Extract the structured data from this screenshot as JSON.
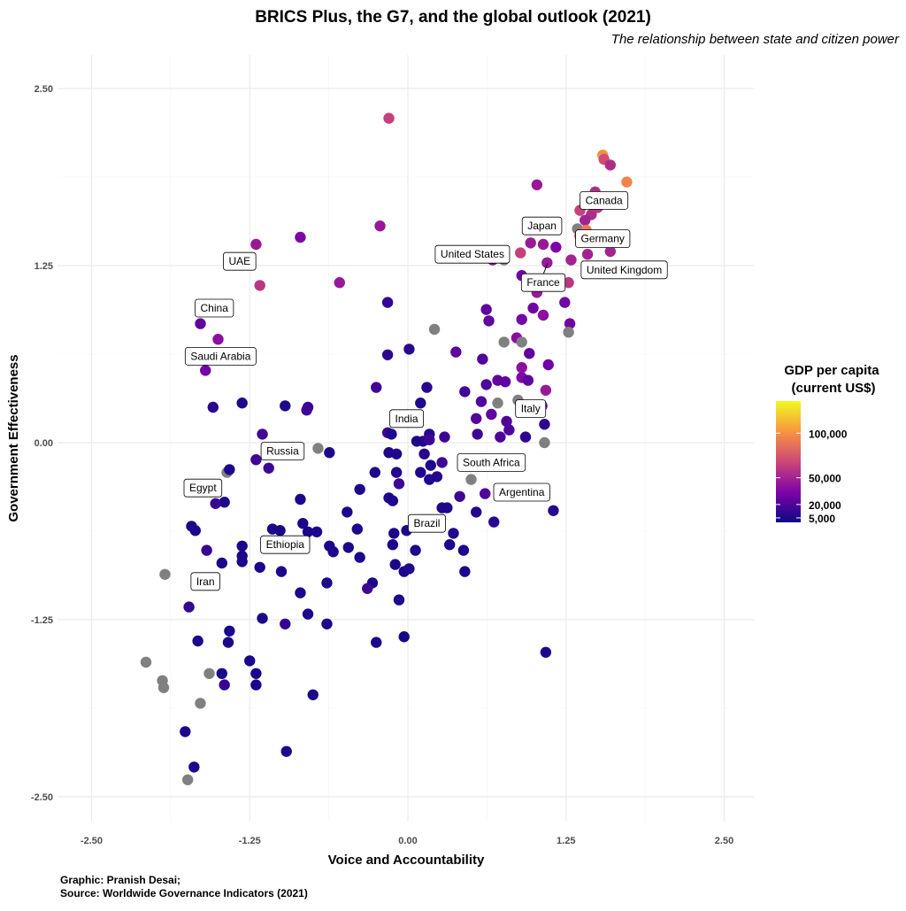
{
  "chart_data": {
    "type": "scatter",
    "title": "BRICS Plus, the G7, and the global outlook (2021)",
    "subtitle": "The relationship between state and citizen power",
    "xlabel": "Voice and Accountability",
    "ylabel": "Government Effectiveness",
    "xlim": [
      -2.75,
      2.75
    ],
    "ylim": [
      -2.65,
      2.75
    ],
    "xticks": [
      -2.5,
      -1.25,
      0,
      1.25,
      2.5
    ],
    "xtick_labels": [
      "-2.50",
      "-1.25",
      "0.00",
      "1.25",
      "2.50"
    ],
    "yticks": [
      -2.5,
      -1.25,
      0,
      1.25,
      2.5
    ],
    "ytick_labels": [
      "-2.50",
      "-1.25",
      "0.00",
      "1.25",
      "2.50"
    ],
    "grid": true,
    "legend": {
      "title_line1": "GDP per capita",
      "title_line2": "(current US$)",
      "placement": "right",
      "range": [
        0,
        136000
      ],
      "ticks": [
        100000,
        50000,
        20000,
        5000
      ],
      "tick_labels": [
        "100,000",
        "50,000",
        "20,000",
        "5,000"
      ],
      "missing_color": "#808080",
      "palette": [
        "#0d0887",
        "#7e03a8",
        "#cc4778",
        "#f89540",
        "#f0f921"
      ]
    },
    "points_columns": [
      "voice_accountability",
      "government_effectiveness",
      "gdp_per_capita"
    ],
    "points": [
      [
        -0.15,
        2.29,
        65000
      ],
      [
        1.54,
        2.03,
        100000
      ],
      [
        1.55,
        2.0,
        70000
      ],
      [
        1.6,
        1.96,
        55000
      ],
      [
        1.73,
        1.84,
        95000
      ],
      [
        1.02,
        1.82,
        45000
      ],
      [
        1.48,
        1.77,
        55000
      ],
      [
        1.36,
        1.64,
        65000
      ],
      [
        1.45,
        1.61,
        55000
      ],
      [
        1.4,
        1.57,
        50000
      ],
      [
        1.5,
        1.66,
        60000
      ],
      [
        1.34,
        1.51,
        null
      ],
      [
        1.41,
        1.5,
        90000
      ],
      [
        1.36,
        1.46,
        52000
      ],
      [
        0.97,
        1.41,
        45000
      ],
      [
        1.07,
        1.4,
        45000
      ],
      [
        1.17,
        1.38,
        35000
      ],
      [
        0.89,
        1.34,
        65000
      ],
      [
        1.42,
        1.33,
        50000
      ],
      [
        1.6,
        1.35,
        50000
      ],
      [
        1.1,
        1.27,
        45000
      ],
      [
        1.29,
        1.29,
        50000
      ],
      [
        0.67,
        1.29,
        40000
      ],
      [
        0.76,
        1.29,
        null
      ],
      [
        0.9,
        1.18,
        30000
      ],
      [
        1.27,
        1.13,
        60000
      ],
      [
        1.02,
        1.06,
        45000
      ],
      [
        1.24,
        0.99,
        30000
      ],
      [
        0.62,
        0.94,
        25000
      ],
      [
        0.99,
        0.95,
        30000
      ],
      [
        1.07,
        0.9,
        40000
      ],
      [
        0.9,
        0.87,
        30000
      ],
      [
        0.64,
        0.86,
        25000
      ],
      [
        1.28,
        0.84,
        30000
      ],
      [
        1.27,
        0.78,
        null
      ],
      [
        0.21,
        0.8,
        null
      ],
      [
        0.86,
        0.74,
        40000
      ],
      [
        0.76,
        0.71,
        null
      ],
      [
        0.9,
        0.71,
        null
      ],
      [
        0.96,
        0.63,
        25000
      ],
      [
        0.38,
        0.64,
        25000
      ],
      [
        0.01,
        0.66,
        8000
      ],
      [
        0.59,
        0.59,
        20000
      ],
      [
        0.9,
        0.53,
        40000
      ],
      [
        1.11,
        0.55,
        30000
      ],
      [
        0.62,
        0.41,
        20000
      ],
      [
        0.71,
        0.44,
        25000
      ],
      [
        0.77,
        0.43,
        25000
      ],
      [
        0.9,
        0.46,
        35000
      ],
      [
        0.95,
        0.44,
        25000
      ],
      [
        1.09,
        0.37,
        45000
      ],
      [
        0.45,
        0.36,
        15000
      ],
      [
        0.15,
        0.39,
        8000
      ],
      [
        -0.25,
        0.39,
        15000
      ],
      [
        0.87,
        0.3,
        null
      ],
      [
        0.71,
        0.28,
        null
      ],
      [
        0.58,
        0.29,
        20000
      ],
      [
        1.06,
        0.26,
        25000
      ],
      [
        0.1,
        0.28,
        6000
      ],
      [
        0.54,
        0.17,
        20000
      ],
      [
        0.66,
        0.2,
        25000
      ],
      [
        1.08,
        0.13,
        10000
      ],
      [
        0.78,
        0.15,
        20000
      ],
      [
        0.8,
        0.09,
        20000
      ],
      [
        0.55,
        0.06,
        15000
      ],
      [
        0.17,
        0.06,
        8000
      ],
      [
        0.73,
        0.04,
        20000
      ],
      [
        0.93,
        0.04,
        10000
      ],
      [
        1.08,
        0.0,
        null
      ],
      [
        -0.16,
        0.07,
        15000
      ],
      [
        -0.13,
        0.06,
        6000
      ],
      [
        0.07,
        0.01,
        5000
      ],
      [
        0.12,
        0.01,
        6000
      ],
      [
        0.17,
        0.02,
        15000
      ],
      [
        0.29,
        0.04,
        15000
      ],
      [
        -0.09,
        -0.08,
        5000
      ],
      [
        -0.15,
        -0.07,
        6000
      ],
      [
        0.13,
        -0.08,
        7000
      ],
      [
        0.18,
        -0.16,
        5000
      ],
      [
        0.27,
        -0.14,
        15000
      ],
      [
        0.1,
        -0.21,
        6000
      ],
      [
        0.23,
        -0.24,
        7000
      ],
      [
        0.17,
        -0.26,
        6000
      ],
      [
        -0.26,
        -0.21,
        5000
      ],
      [
        -0.09,
        -0.21,
        6000
      ],
      [
        -0.07,
        -0.29,
        15000
      ],
      [
        0.5,
        -0.26,
        null
      ],
      [
        -0.38,
        -0.33,
        5000
      ],
      [
        0.41,
        -0.38,
        15000
      ],
      [
        0.61,
        -0.36,
        20000
      ],
      [
        -0.15,
        -0.39,
        6000
      ],
      [
        -0.12,
        -0.41,
        5000
      ],
      [
        0.27,
        -0.46,
        6000
      ],
      [
        0.31,
        -0.46,
        5000
      ],
      [
        0.54,
        -0.49,
        7000
      ],
      [
        1.15,
        -0.48,
        8000
      ],
      [
        -0.48,
        -0.49,
        4000
      ],
      [
        0.68,
        -0.56,
        8000
      ],
      [
        -0.01,
        -0.62,
        5000
      ],
      [
        -0.4,
        -0.61,
        4000
      ],
      [
        -0.11,
        -0.64,
        5000
      ],
      [
        0.36,
        -0.64,
        6000
      ],
      [
        -0.12,
        -0.72,
        4000
      ],
      [
        0.33,
        -0.72,
        5000
      ],
      [
        0.44,
        -0.76,
        5000
      ],
      [
        0.06,
        -0.76,
        5000
      ],
      [
        -0.47,
        -0.74,
        5000
      ],
      [
        -0.38,
        -0.81,
        4000
      ],
      [
        -0.1,
        -0.86,
        4000
      ],
      [
        -0.03,
        -0.91,
        5000
      ],
      [
        0.01,
        -0.89,
        6000
      ],
      [
        0.45,
        -0.91,
        4000
      ],
      [
        -0.28,
        -0.99,
        5000
      ],
      [
        -0.32,
        -1.03,
        15000
      ],
      [
        -0.07,
        -1.11,
        4000
      ],
      [
        -0.03,
        -1.37,
        3000
      ],
      [
        -0.25,
        -1.41,
        4000
      ],
      [
        1.09,
        -1.48,
        5000
      ],
      [
        -1.2,
        1.4,
        45000
      ],
      [
        -0.85,
        1.45,
        35000
      ],
      [
        -0.22,
        1.53,
        45000
      ],
      [
        -1.17,
        1.11,
        60000
      ],
      [
        -0.54,
        1.13,
        45000
      ],
      [
        -0.16,
        0.99,
        12000
      ],
      [
        -1.64,
        0.84,
        25000
      ],
      [
        -1.5,
        0.73,
        40000
      ],
      [
        -1.6,
        0.51,
        30000
      ],
      [
        -0.16,
        0.62,
        10000
      ],
      [
        -1.54,
        0.25,
        8000
      ],
      [
        -1.31,
        0.28,
        5000
      ],
      [
        -0.97,
        0.26,
        5000
      ],
      [
        -0.79,
        0.25,
        12000
      ],
      [
        -0.8,
        0.23,
        15000
      ],
      [
        -1.15,
        0.06,
        15000
      ],
      [
        -0.71,
        -0.04,
        null
      ],
      [
        -0.62,
        -0.07,
        5000
      ],
      [
        -1.2,
        -0.12,
        15000
      ],
      [
        -1.1,
        -0.18,
        15000
      ],
      [
        -1.43,
        -0.21,
        null
      ],
      [
        -1.41,
        -0.19,
        5000
      ],
      [
        -1.45,
        -0.42,
        5000
      ],
      [
        -1.52,
        -0.43,
        12000
      ],
      [
        -0.85,
        -0.4,
        5000
      ],
      [
        -1.71,
        -0.59,
        4000
      ],
      [
        -1.68,
        -0.62,
        4000
      ],
      [
        -1.07,
        -0.61,
        4000
      ],
      [
        -1.01,
        -0.62,
        4000
      ],
      [
        -0.83,
        -0.57,
        4000
      ],
      [
        -0.79,
        -0.63,
        4000
      ],
      [
        -0.72,
        -0.63,
        4000
      ],
      [
        -1.31,
        -0.73,
        4000
      ],
      [
        -0.62,
        -0.73,
        4000
      ],
      [
        -0.59,
        -0.77,
        5000
      ],
      [
        -0.88,
        -0.71,
        4000
      ],
      [
        -1.59,
        -0.76,
        12000
      ],
      [
        -1.31,
        -0.8,
        4000
      ],
      [
        -1.31,
        -0.84,
        4000
      ],
      [
        -1.17,
        -0.88,
        4000
      ],
      [
        -1.47,
        -0.85,
        4000
      ],
      [
        -1.0,
        -0.91,
        4000
      ],
      [
        -1.92,
        -0.93,
        null
      ],
      [
        -0.64,
        -0.99,
        4000
      ],
      [
        -0.85,
        -1.06,
        4000
      ],
      [
        -1.73,
        -1.16,
        12000
      ],
      [
        -0.79,
        -1.21,
        4000
      ],
      [
        -1.15,
        -1.24,
        4000
      ],
      [
        -0.97,
        -1.28,
        12000
      ],
      [
        -0.64,
        -1.28,
        4000
      ],
      [
        -1.41,
        -1.33,
        4000
      ],
      [
        -1.66,
        -1.4,
        4000
      ],
      [
        -1.42,
        -1.41,
        4000
      ],
      [
        -1.25,
        -1.54,
        4000
      ],
      [
        -2.07,
        -1.55,
        null
      ],
      [
        -1.57,
        -1.63,
        null
      ],
      [
        -1.47,
        -1.63,
        4000
      ],
      [
        -1.2,
        -1.63,
        4000
      ],
      [
        -1.94,
        -1.68,
        null
      ],
      [
        -1.45,
        -1.71,
        12000
      ],
      [
        -1.2,
        -1.71,
        4000
      ],
      [
        -1.93,
        -1.73,
        null
      ],
      [
        -0.75,
        -1.78,
        4000
      ],
      [
        -1.64,
        -1.84,
        null
      ],
      [
        -1.76,
        -2.04,
        4000
      ],
      [
        -0.96,
        -2.18,
        4000
      ],
      [
        -1.69,
        -2.29,
        4000
      ],
      [
        -1.74,
        -2.38,
        null
      ]
    ],
    "annotations": [
      {
        "text": "China",
        "x": -1.53,
        "y": 0.95
      },
      {
        "text": "Saudi Arabia",
        "x": -1.48,
        "y": 0.61
      },
      {
        "text": "UAE",
        "x": -1.33,
        "y": 1.28
      },
      {
        "text": "Egypt",
        "x": -1.62,
        "y": -0.32
      },
      {
        "text": "Iran",
        "x": -1.6,
        "y": -0.98
      },
      {
        "text": "Russia",
        "x": -0.99,
        "y": -0.06
      },
      {
        "text": "Ethiopia",
        "x": -0.97,
        "y": -0.72
      },
      {
        "text": "India",
        "x": -0.01,
        "y": 0.17
      },
      {
        "text": "Brazil",
        "x": 0.15,
        "y": -0.57
      },
      {
        "text": "South Africa",
        "x": 0.66,
        "y": -0.14
      },
      {
        "text": "Argentina",
        "x": 0.9,
        "y": -0.35
      },
      {
        "text": "Italy",
        "x": 0.97,
        "y": 0.24
      },
      {
        "text": "United States",
        "x": 0.51,
        "y": 1.33
      },
      {
        "text": "Japan",
        "x": 1.06,
        "y": 1.53
      },
      {
        "text": "France",
        "x": 1.07,
        "y": 1.13
      },
      {
        "text": "Canada",
        "x": 1.55,
        "y": 1.71
      },
      {
        "text": "Germany",
        "x": 1.54,
        "y": 1.44
      },
      {
        "text": "United Kingdom",
        "x": 1.71,
        "y": 1.22
      }
    ],
    "caption_line1": "Graphic: Pranish Desai;",
    "caption_line2": "Source: Worldwide Governance Indicators (2021)"
  }
}
